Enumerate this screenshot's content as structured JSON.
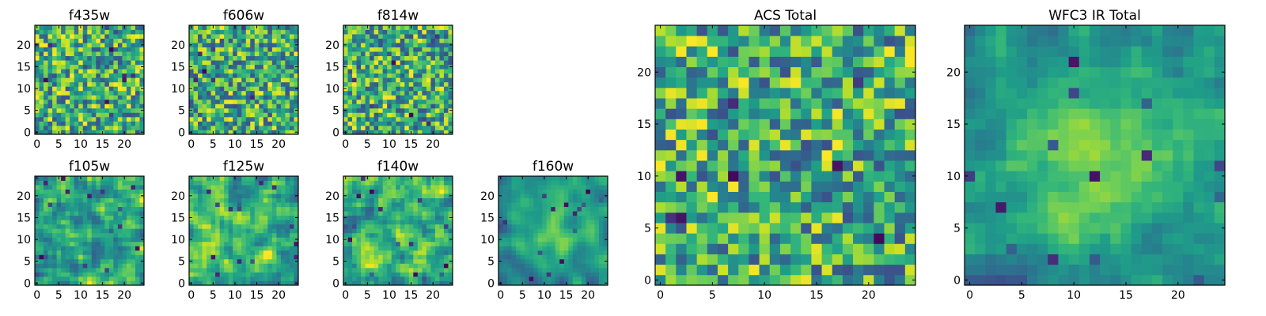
{
  "chart_data": [
    {
      "type": "heatmap",
      "title": "f435w",
      "x_ticks": [
        0,
        5,
        10,
        15,
        20
      ],
      "y_ticks": [
        0,
        5,
        10,
        15,
        20
      ],
      "xlim": [
        0,
        25
      ],
      "ylim": [
        0,
        25
      ],
      "grid": false,
      "colormap": "viridis",
      "values": []
    },
    {
      "type": "heatmap",
      "title": "f606w",
      "x_ticks": [
        0,
        5,
        10,
        15,
        20
      ],
      "y_ticks": [
        0,
        5,
        10,
        15,
        20
      ],
      "xlim": [
        0,
        25
      ],
      "ylim": [
        0,
        25
      ],
      "grid": false,
      "colormap": "viridis",
      "values": []
    },
    {
      "type": "heatmap",
      "title": "f814w",
      "x_ticks": [
        0,
        5,
        10,
        15,
        20
      ],
      "y_ticks": [
        0,
        5,
        10,
        15,
        20
      ],
      "xlim": [
        0,
        25
      ],
      "ylim": [
        0,
        25
      ],
      "grid": false,
      "colormap": "viridis",
      "values": []
    },
    {
      "type": "heatmap",
      "title": "f105w",
      "x_ticks": [
        0,
        5,
        10,
        15,
        20
      ],
      "y_ticks": [
        0,
        5,
        10,
        15,
        20
      ],
      "xlim": [
        0,
        25
      ],
      "ylim": [
        0,
        25
      ],
      "grid": false,
      "colormap": "viridis",
      "values": []
    },
    {
      "type": "heatmap",
      "title": "f125w",
      "x_ticks": [
        0,
        5,
        10,
        15,
        20
      ],
      "y_ticks": [
        0,
        5,
        10,
        15,
        20
      ],
      "xlim": [
        0,
        25
      ],
      "ylim": [
        0,
        25
      ],
      "grid": false,
      "colormap": "viridis",
      "values": []
    },
    {
      "type": "heatmap",
      "title": "f140w",
      "x_ticks": [
        0,
        5,
        10,
        15,
        20
      ],
      "y_ticks": [
        0,
        5,
        10,
        15,
        20
      ],
      "xlim": [
        0,
        25
      ],
      "ylim": [
        0,
        25
      ],
      "grid": false,
      "colormap": "viridis",
      "values": []
    },
    {
      "type": "heatmap",
      "title": "f160w",
      "x_ticks": [
        0,
        5,
        10,
        15,
        20
      ],
      "y_ticks": [
        0,
        5,
        10,
        15,
        20
      ],
      "xlim": [
        0,
        25
      ],
      "ylim": [
        0,
        25
      ],
      "grid": false,
      "colormap": "viridis",
      "values": []
    },
    {
      "type": "heatmap",
      "title": "ACS Total",
      "x_ticks": [
        0,
        5,
        10,
        15,
        20
      ],
      "y_ticks": [
        0,
        5,
        10,
        15,
        20
      ],
      "xlim": [
        0,
        25
      ],
      "ylim": [
        0,
        25
      ],
      "grid": false,
      "colormap": "viridis",
      "values": []
    },
    {
      "type": "heatmap",
      "title": "WFC3 IR Total",
      "x_ticks": [
        0,
        5,
        10,
        15,
        20
      ],
      "y_ticks": [
        0,
        5,
        10,
        15,
        20
      ],
      "xlim": [
        0,
        25
      ],
      "ylim": [
        0,
        25
      ],
      "grid": false,
      "colormap": "viridis",
      "values": []
    }
  ]
}
